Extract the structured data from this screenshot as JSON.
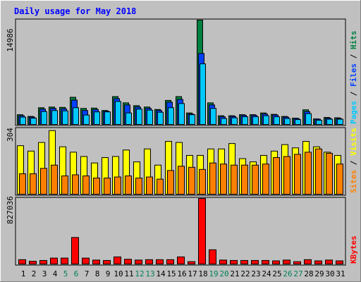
{
  "chart_data": {
    "type": "bar",
    "title": "Daily usage for May 2018",
    "categories": [
      "1",
      "2",
      "3",
      "4",
      "5",
      "6",
      "7",
      "8",
      "9",
      "10",
      "11",
      "12",
      "13",
      "14",
      "15",
      "16",
      "17",
      "18",
      "19",
      "20",
      "21",
      "22",
      "23",
      "24",
      "25",
      "26",
      "27",
      "28",
      "29",
      "30",
      "31"
    ],
    "weekend_days": [
      "5",
      "6",
      "12",
      "13",
      "19",
      "20",
      "26",
      "27"
    ],
    "panels": [
      {
        "id": "top",
        "max_label": "14986",
        "ymax": 14986,
        "labels": [
          "Pages",
          "Files",
          "Hits"
        ],
        "series": [
          {
            "name": "Hits",
            "color": "#008040",
            "values": [
              1400,
              1150,
              2400,
              2500,
              2450,
              3900,
              2300,
              2350,
              2000,
              4000,
              3100,
              2700,
              2500,
              2150,
              3450,
              4000,
              1650,
              14986,
              3100,
              1250,
              1250,
              1400,
              1400,
              1650,
              1450,
              1150,
              900,
              2100,
              800,
              1000,
              950
            ]
          },
          {
            "name": "Files",
            "color": "#0040ff",
            "values": [
              1250,
              1050,
              2200,
              2300,
              2250,
              3500,
              2000,
              2150,
              1900,
              3700,
              2800,
              2500,
              2300,
              2000,
              3200,
              3600,
              1500,
              10200,
              2800,
              1100,
              1150,
              1300,
              1300,
              1500,
              1350,
              1050,
              850,
              1850,
              750,
              900,
              850
            ]
          },
          {
            "name": "Pages",
            "color": "#00c8ff",
            "values": [
              1050,
              900,
              1850,
              2000,
              1950,
              2400,
              1350,
              1800,
              1800,
              3300,
              1650,
              2200,
              2050,
              1750,
              2400,
              3000,
              1400,
              8700,
              2300,
              850,
              950,
              1100,
              1100,
              1250,
              1100,
              850,
              700,
              1550,
              600,
              750,
              750
            ]
          }
        ]
      },
      {
        "id": "middle",
        "max_label": "304",
        "ymax": 304,
        "labels": [
          "Sites",
          "Visits"
        ],
        "series": [
          {
            "name": "Visits",
            "color": "#ffff00",
            "values": [
              225,
              200,
              240,
              295,
              220,
              195,
              175,
              145,
              170,
              175,
              205,
              150,
              210,
              135,
              245,
              240,
              180,
              180,
              210,
              210,
              235,
              165,
              150,
              180,
              200,
              230,
              215,
              245,
              220,
              195,
              180
            ]
          },
          {
            "name": "Sites",
            "color": "#ff8000",
            "values": [
              95,
              95,
              120,
              135,
              85,
              90,
              85,
              75,
              75,
              80,
              85,
              75,
              80,
              70,
              110,
              130,
              125,
              115,
              145,
              140,
              135,
              135,
              135,
              140,
              170,
              175,
              185,
              195,
              210,
              190,
              140
            ]
          }
        ]
      },
      {
        "id": "bottom",
        "max_label": "827036",
        "ymax": 827036,
        "labels": [
          "KBytes"
        ],
        "series": [
          {
            "name": "KBytes",
            "color": "#ff0000",
            "values": [
              55000,
              35000,
              45000,
              75000,
              75000,
              335000,
              75000,
              50000,
              45000,
              90000,
              60000,
              50000,
              55000,
              55000,
              55000,
              90000,
              30000,
              827036,
              180000,
              50000,
              45000,
              45000,
              45000,
              45000,
              40000,
              50000,
              30000,
              55000,
              40000,
              50000,
              40000
            ]
          }
        ]
      }
    ]
  },
  "colors": {
    "background": "#c0c0c0",
    "plot": "#c0c0c0",
    "title": "#0000ff",
    "weekday_label": "#000000",
    "weekend_label": "#00805c",
    "scale_label": "#000000",
    "separator": "#000000"
  }
}
